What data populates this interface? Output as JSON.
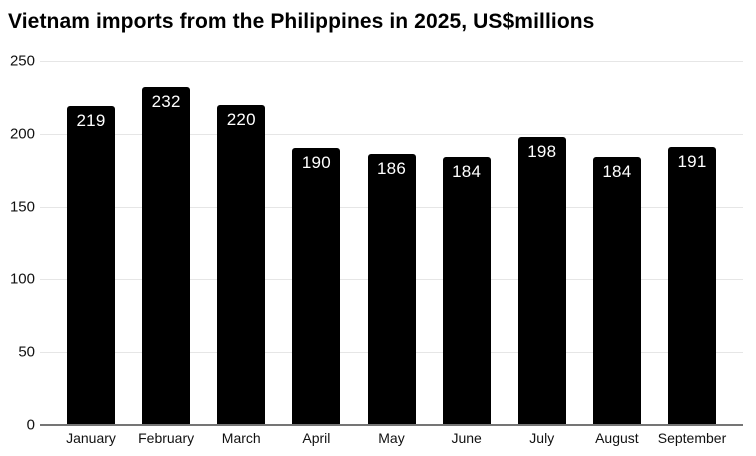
{
  "page": {
    "title": "Vietnam imports from the Philippines in 2025, US$millions"
  },
  "chart_data": {
    "type": "bar",
    "title": "Vietnam imports from the Philippines in 2025, US$millions",
    "categories": [
      "January",
      "February",
      "March",
      "April",
      "May",
      "June",
      "July",
      "August",
      "September"
    ],
    "values": [
      219,
      232,
      220,
      190,
      186,
      184,
      198,
      184,
      191
    ],
    "xlabel": "",
    "ylabel": "",
    "ylim": [
      0,
      250
    ],
    "yticks": [
      0,
      50,
      100,
      150,
      200,
      250
    ],
    "grid": "horizontal",
    "legend": "none",
    "value_labels": "inside-top"
  },
  "colors": {
    "background": "#ffffff",
    "title": "#000000",
    "bar": "#000000",
    "value_label": "#ffffff",
    "gridline": "#e6e6e6",
    "axis_line": "#757575",
    "tick_label": "#111111"
  }
}
